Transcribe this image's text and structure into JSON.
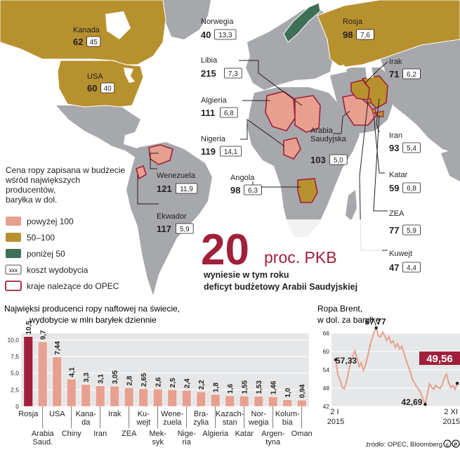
{
  "colors": {
    "above_100": "#e7a08f",
    "range_50_100": "#b8912f",
    "below_50": "#3e7058",
    "opec_outline": "#a0203c",
    "land": "#a6a8ab",
    "sea": "#ffffff",
    "highlight_red": "#a0203c",
    "bar_light": "#e7a08f",
    "bar_dark": "#a0203c",
    "brent_line": "#e7a08f"
  },
  "legend": {
    "title": "Cena ropy zapisana w budżecie wśród największych producentów, baryłka w dol.",
    "title_lines": [
      "Cena ropy zapisana w budżecie",
      "wśród największych",
      "producentów,",
      "baryłka w dol."
    ],
    "items": [
      {
        "label": "powyżej 100",
        "color": "#e7a08f"
      },
      {
        "label": "50–100",
        "color": "#b8912f"
      },
      {
        "label": "poniżej 50",
        "color": "#3e7058"
      },
      {
        "label": "koszt wydobycia",
        "symbol": "xxx"
      },
      {
        "label": "kraje należące do OPEC",
        "symbol": "outline"
      }
    ]
  },
  "countries": [
    {
      "name": "Kanada",
      "budget_price": "62",
      "cost": "45"
    },
    {
      "name": "USA",
      "budget_price": "60",
      "cost": "40"
    },
    {
      "name": "Norwegia",
      "budget_price": "40",
      "cost": "13,3"
    },
    {
      "name": "Rosja",
      "budget_price": "98",
      "cost": "7,6"
    },
    {
      "name": "Libia",
      "budget_price": "215",
      "cost": "7,3"
    },
    {
      "name": "Irak",
      "budget_price": "71",
      "cost": "6,2"
    },
    {
      "name": "Algieria",
      "budget_price": "111",
      "cost": "6,8"
    },
    {
      "name": "Nigeria",
      "budget_price": "119",
      "cost": "14,1"
    },
    {
      "name": "Arabia Saudyjska",
      "name_lines": [
        "Arabia",
        "Saudyjska"
      ],
      "budget_price": "103",
      "cost": "5,0"
    },
    {
      "name": "Iran",
      "budget_price": "93",
      "cost": "5,4"
    },
    {
      "name": "Wenezuela",
      "budget_price": "121",
      "cost": "11,9"
    },
    {
      "name": "Angola",
      "budget_price": "98",
      "cost": "6,3"
    },
    {
      "name": "Katar",
      "budget_price": "59",
      "cost": "6,8"
    },
    {
      "name": "Ekwador",
      "budget_price": "117",
      "cost": "5,9"
    },
    {
      "name": "ZEA",
      "budget_price": "77",
      "cost": "5,9"
    },
    {
      "name": "Kuwejt",
      "budget_price": "47",
      "cost": "4,4"
    }
  ],
  "headline": {
    "big": "20",
    "unit": "proc. PKB",
    "line1": "wyniesie w tym roku",
    "line2": "deficyt budżetowy Arabii Saudyjskiej"
  },
  "source": "źródło: OPEC, Bloomberg",
  "chart_data": [
    {
      "type": "bar",
      "title": "Najwięksi producenci ropy naftowej na świecie, wydobycie w mln baryłek dziennie",
      "title_lines": [
        "Najwięksi producenci ropy naftowej na świecie,",
        "wydobycie w mln baryłek dziennie"
      ],
      "categories": [
        "Rosja",
        "Arabia Saud.",
        "USA",
        "Chiny",
        "Kanada",
        "Iran",
        "Irak",
        "ZEA",
        "Kuwejt",
        "Meksyk",
        "Wenezuela",
        "Nigeria",
        "Brazylia",
        "Algieria",
        "Kazachstan",
        "Katar",
        "Norwegia",
        "Argentyna",
        "Kolumbia",
        "Oman"
      ],
      "category_labels": [
        [
          "Rosja"
        ],
        [
          "Arabia",
          "Saud."
        ],
        [
          "USA"
        ],
        [
          "Chiny"
        ],
        [
          "Kana-",
          "da"
        ],
        [
          "Iran"
        ],
        [
          "Irak"
        ],
        [
          "ZEA"
        ],
        [
          "Ku-",
          "wejt"
        ],
        [
          "Mek-",
          "syk"
        ],
        [
          "Wene-",
          "zuela"
        ],
        [
          "Nige-",
          "ria"
        ],
        [
          "Bra-",
          "zylia"
        ],
        [
          "Algieria"
        ],
        [
          "Kazach-",
          "stan"
        ],
        [
          "Katar"
        ],
        [
          "Nor-",
          "wegia"
        ],
        [
          "Argen-",
          "tyna"
        ],
        [
          "Kolum-",
          "bia"
        ],
        [
          "Oman"
        ]
      ],
      "values": [
        10.5,
        9.7,
        7.44,
        4.1,
        3.3,
        3.1,
        3.05,
        2.8,
        2.65,
        2.6,
        2.5,
        2.4,
        2.2,
        1.8,
        1.6,
        1.55,
        1.53,
        1.46,
        1.0,
        0.94
      ],
      "value_labels": [
        "10,5",
        "9,7",
        "7,44",
        "4,1",
        "3,3",
        "3,1",
        "3,05",
        "2,8",
        "2,65",
        "2,6",
        "2,5",
        "2,4",
        "2,2",
        "1,8",
        "1,6",
        "1,55",
        "1,53",
        "1,46",
        "1,0",
        "0,94"
      ],
      "yticks": [
        "0",
        "2,5",
        "5,0",
        "7,5",
        "10,0"
      ],
      "ytick_values": [
        0,
        2.5,
        5.0,
        7.5,
        10.0
      ],
      "ylim": [
        0,
        11
      ],
      "grid": true
    },
    {
      "type": "line",
      "title": "Ropa Brent, w dol. za baryłkę",
      "title_lines": [
        "Ropa Brent,",
        "w dol. za baryłkę"
      ],
      "x_start": "2 I 2015",
      "x_end": "2 XI 2015",
      "x_labels": [
        [
          "2 I",
          "2015"
        ],
        [
          "2 XI",
          "2015"
        ]
      ],
      "yticks": [
        "42",
        "48",
        "54",
        "60",
        "66"
      ],
      "ytick_values": [
        42,
        48,
        54,
        60,
        66
      ],
      "ylim": [
        42,
        66
      ],
      "annotations": [
        {
          "label": "57,33",
          "value": 57.33
        },
        {
          "label": "67,77",
          "value": 67.77
        },
        {
          "label": "42,69",
          "value": 42.69
        },
        {
          "label": "49,56",
          "value": 49.56
        }
      ],
      "series": [
        {
          "values": [
            57.33,
            52.4,
            50.8,
            48.3,
            47.8,
            49.9,
            53.2,
            56.4,
            58.6,
            60.2,
            57.9,
            55.1,
            56.3,
            53.8,
            55.6,
            58.4,
            61.7,
            64.3,
            66.2,
            67.77,
            65.2,
            64.8,
            66.4,
            65.1,
            63.7,
            64.9,
            62.8,
            63.5,
            61.4,
            62.6,
            60.9,
            61.8,
            59.6,
            57.2,
            55.3,
            53.4,
            50.8,
            49.7,
            48.4,
            47.6,
            46.2,
            44.3,
            42.69,
            45.9,
            49.4,
            48.3,
            47.6,
            48.9,
            48.2,
            47.9,
            49.2,
            51.4,
            52.6,
            49.8,
            48.2,
            48.9,
            47.6,
            49.56
          ]
        }
      ],
      "grid": true
    }
  ]
}
